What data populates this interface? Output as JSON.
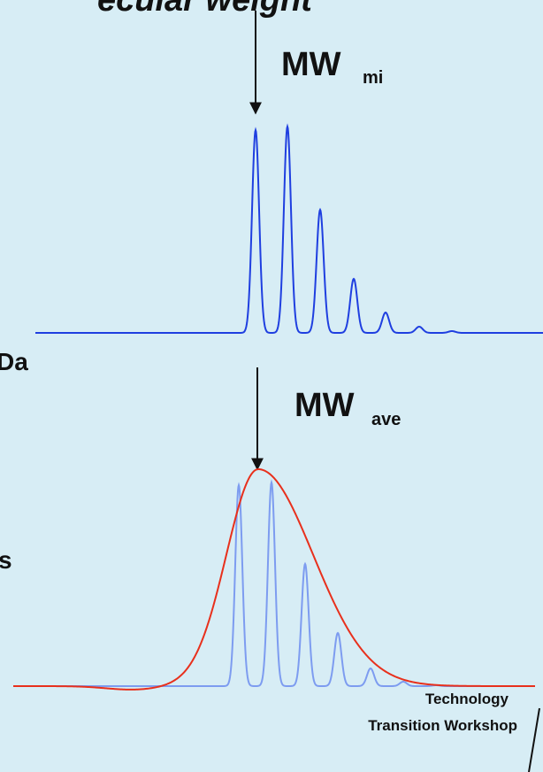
{
  "title": "ecular weight",
  "top_label": {
    "main": "MW",
    "sub": "mi"
  },
  "left_fragment_1": "Da",
  "bottom_label": {
    "main": "MW",
    "sub": "ave"
  },
  "left_fragment_2": "s",
  "footer": {
    "line1": "Technology",
    "line2": "Transition Workshop"
  }
}
